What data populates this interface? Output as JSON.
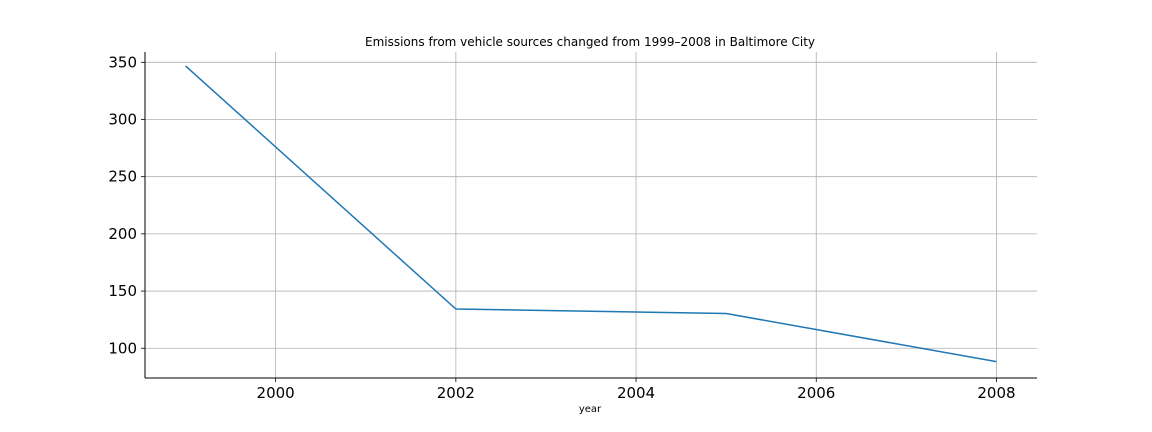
{
  "chart_data": {
    "type": "line",
    "title": "Emissions from vehicle sources changed from 1999–2008 in Baltimore City",
    "xlabel": "year",
    "ylabel": "",
    "x": [
      1999,
      2002,
      2005,
      2008
    ],
    "series": [
      {
        "values": [
          346.8,
          134.3,
          130.4,
          88.3
        ],
        "color": "#1f77b4"
      }
    ],
    "xlim": [
      1998.55,
      2008.45
    ],
    "ylim": [
      74,
      359
    ],
    "xticks": [
      2000,
      2002,
      2004,
      2006,
      2008
    ],
    "yticks": [
      100,
      150,
      200,
      250,
      300,
      350
    ],
    "grid": true,
    "legend": "none"
  }
}
